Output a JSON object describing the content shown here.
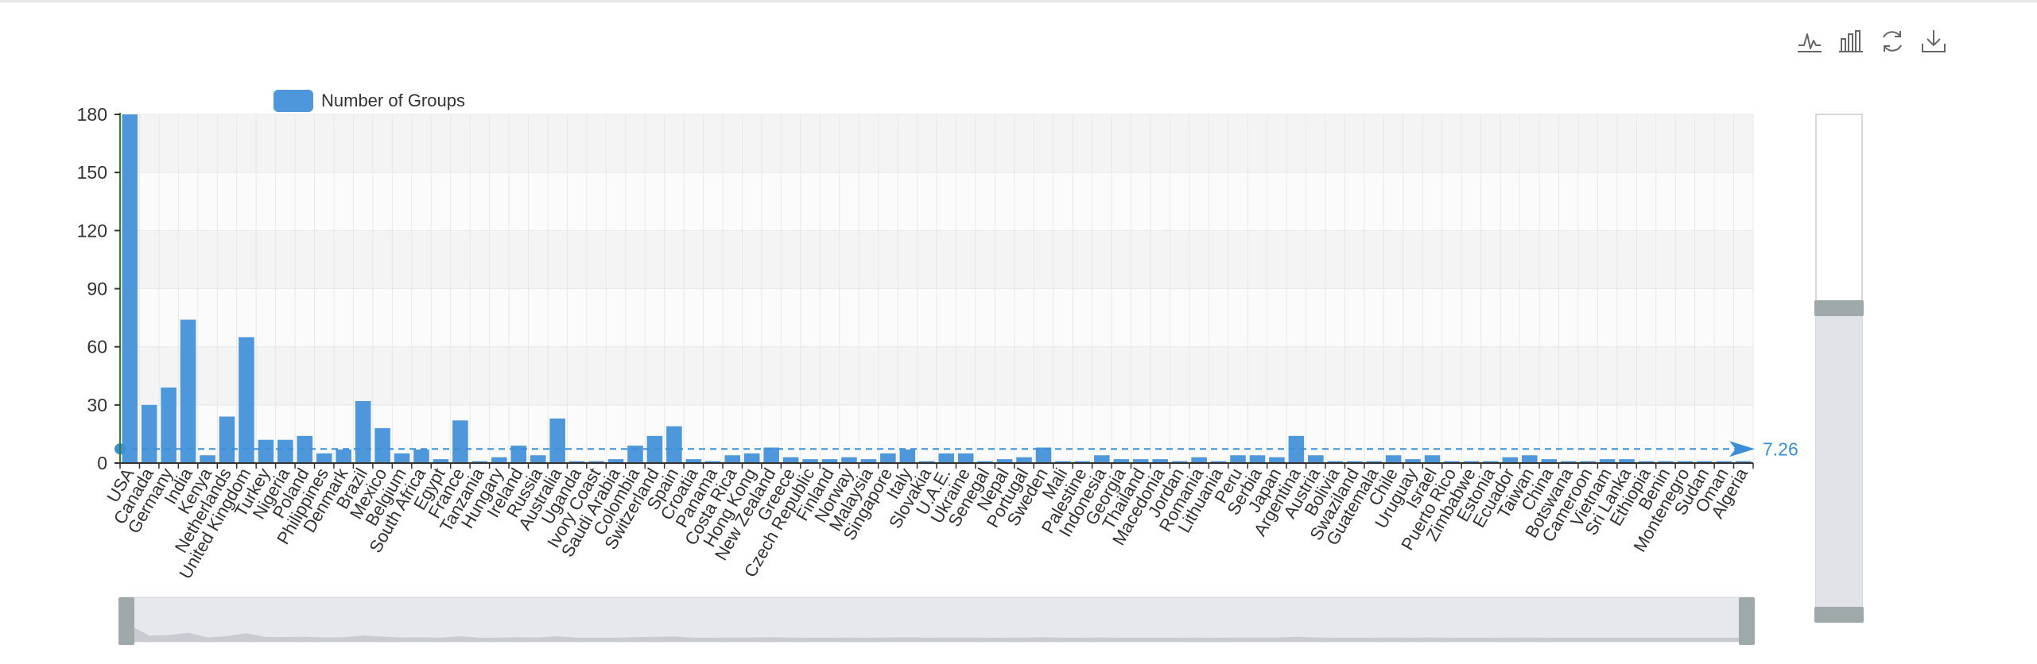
{
  "toolbox": {
    "icons": [
      "line-chart-icon",
      "bar-chart-icon",
      "refresh-icon",
      "download-icon"
    ]
  },
  "colors": {
    "bar": "#4f97db",
    "markline": "#3b8fd9",
    "axis": "#333333",
    "yaxis_line": "#3a7d1f",
    "band": "#f4f4f4",
    "grid": "#e8e8e8"
  },
  "chart_data": {
    "type": "bar",
    "legend": "Number of Groups",
    "legend_position": "top-left",
    "ylim": [
      0,
      180
    ],
    "yticks": [
      0,
      30,
      60,
      90,
      120,
      150,
      180
    ],
    "markline": {
      "value": 7.26,
      "label": "7.26"
    },
    "categories": [
      "USA",
      "Canada",
      "Germany",
      "India",
      "Kenya",
      "Netherlands",
      "United Kingdom",
      "Turkey",
      "Nigeria",
      "Poland",
      "Philippines",
      "Denmark",
      "Brazil",
      "Mexico",
      "Belgium",
      "South Africa",
      "Egypt",
      "France",
      "Tanzania",
      "Hungary",
      "Ireland",
      "Russia",
      "Australia",
      "Uganda",
      "Ivory Coast",
      "Saudi Arabia",
      "Colombia",
      "Switzerland",
      "Spain",
      "Croatia",
      "Panama",
      "Costa Rica",
      "Hong Kong",
      "New Zealand",
      "Greece",
      "Czech Republic",
      "Finland",
      "Norway",
      "Malaysia",
      "Singapore",
      "Italy",
      "Slovakia",
      "U.A.E.",
      "Ukraine",
      "Senegal",
      "Nepal",
      "Portugal",
      "Sweden",
      "Mali",
      "Palestine",
      "Indonesia",
      "Georgia",
      "Thailand",
      "Macedonia",
      "Jordan",
      "Romania",
      "Lithuania",
      "Peru",
      "Serbia",
      "Japan",
      "Argentina",
      "Austria",
      "Bolivia",
      "Swaziland",
      "Guatemala",
      "Chile",
      "Uruguay",
      "Israel",
      "Puerto Rico",
      "Zimbabwe",
      "Estonia",
      "Ecuador",
      "Taiwan",
      "China",
      "Botswana",
      "Cameroon",
      "Vietnam",
      "Sri Lanka",
      "Ethiopia",
      "Benin",
      "Montenegro",
      "Sudan",
      "Oman",
      "Algeria"
    ],
    "values": [
      186,
      30,
      39,
      74,
      4,
      24,
      65,
      12,
      12,
      14,
      5,
      7,
      32,
      18,
      5,
      7,
      2,
      22,
      1,
      3,
      9,
      4,
      23,
      1,
      1,
      2,
      9,
      14,
      19,
      2,
      1,
      4,
      5,
      8,
      3,
      2,
      2,
      3,
      2,
      5,
      7,
      1,
      5,
      5,
      1,
      2,
      3,
      8,
      1,
      1,
      4,
      2,
      2,
      2,
      1,
      3,
      1,
      4,
      4,
      3,
      14,
      4,
      1,
      1,
      1,
      4,
      2,
      4,
      1,
      1,
      1,
      3,
      4,
      2,
      1,
      1,
      2,
      2,
      1,
      1,
      1,
      1,
      1,
      1
    ]
  }
}
